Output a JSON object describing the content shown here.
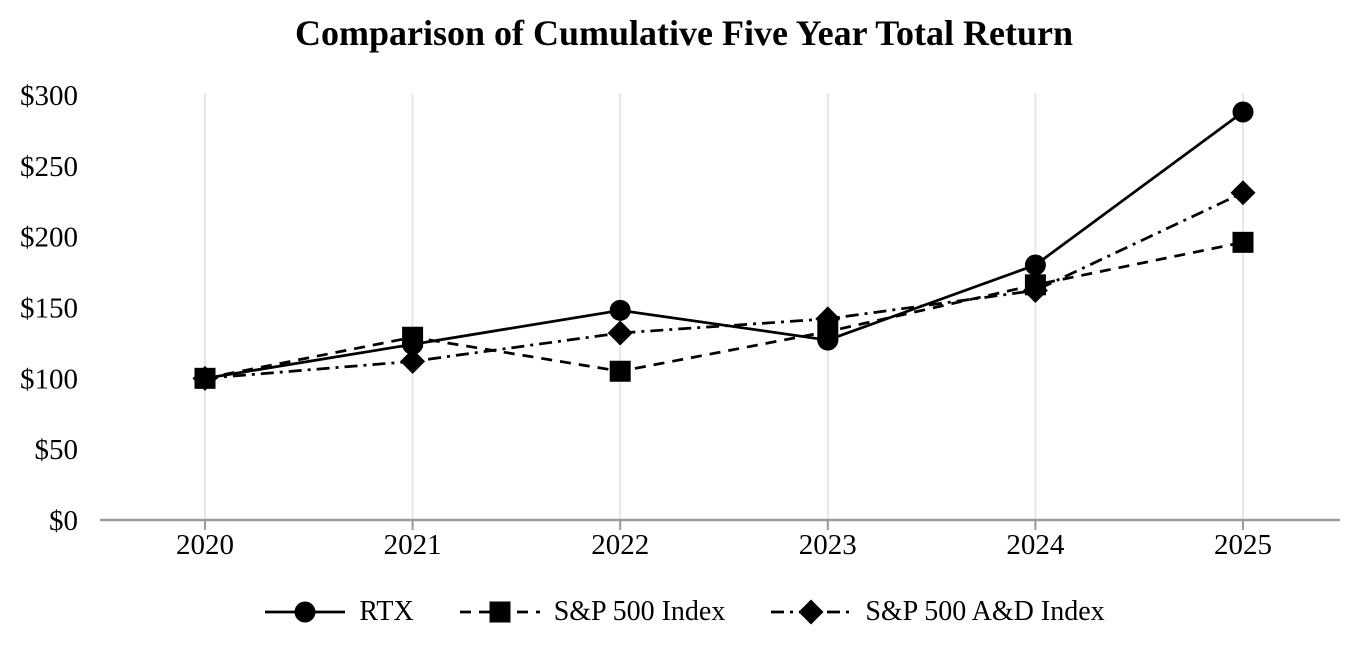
{
  "chart_data": {
    "type": "line",
    "title": "Comparison of Cumulative Five Year Total Return",
    "categories": [
      "2020",
      "2021",
      "2022",
      "2023",
      "2024",
      "2025"
    ],
    "series": [
      {
        "name": "RTX",
        "marker": "circle",
        "line_style": "solid",
        "values": [
          100,
          124,
          148,
          127,
          180,
          288
        ]
      },
      {
        "name": "S&P 500 Index",
        "marker": "square",
        "line_style": "dashed",
        "values": [
          100,
          129,
          105,
          133,
          166,
          196
        ]
      },
      {
        "name": "S&P 500 A&D Index",
        "marker": "diamond",
        "line_style": "dash-dot",
        "values": [
          100,
          112,
          132,
          142,
          162,
          231
        ]
      }
    ],
    "draw_order": [
      0,
      2,
      1
    ],
    "y_ticks": [
      {
        "label": "$0",
        "value": 0
      },
      {
        "label": "$50",
        "value": 50
      },
      {
        "label": "$100",
        "value": 100
      },
      {
        "label": "$150",
        "value": 150
      },
      {
        "label": "$200",
        "value": 200
      },
      {
        "label": "$250",
        "value": 250
      },
      {
        "label": "$300",
        "value": 300
      }
    ],
    "ylim": [
      0,
      300
    ],
    "grid": "vertical-only",
    "legend_position": "bottom-center",
    "colors": {
      "series": "#000000",
      "gridline": "#e7e7e7",
      "axis": "#9b9b9b",
      "background": "#ffffff",
      "text": "#000000"
    }
  }
}
